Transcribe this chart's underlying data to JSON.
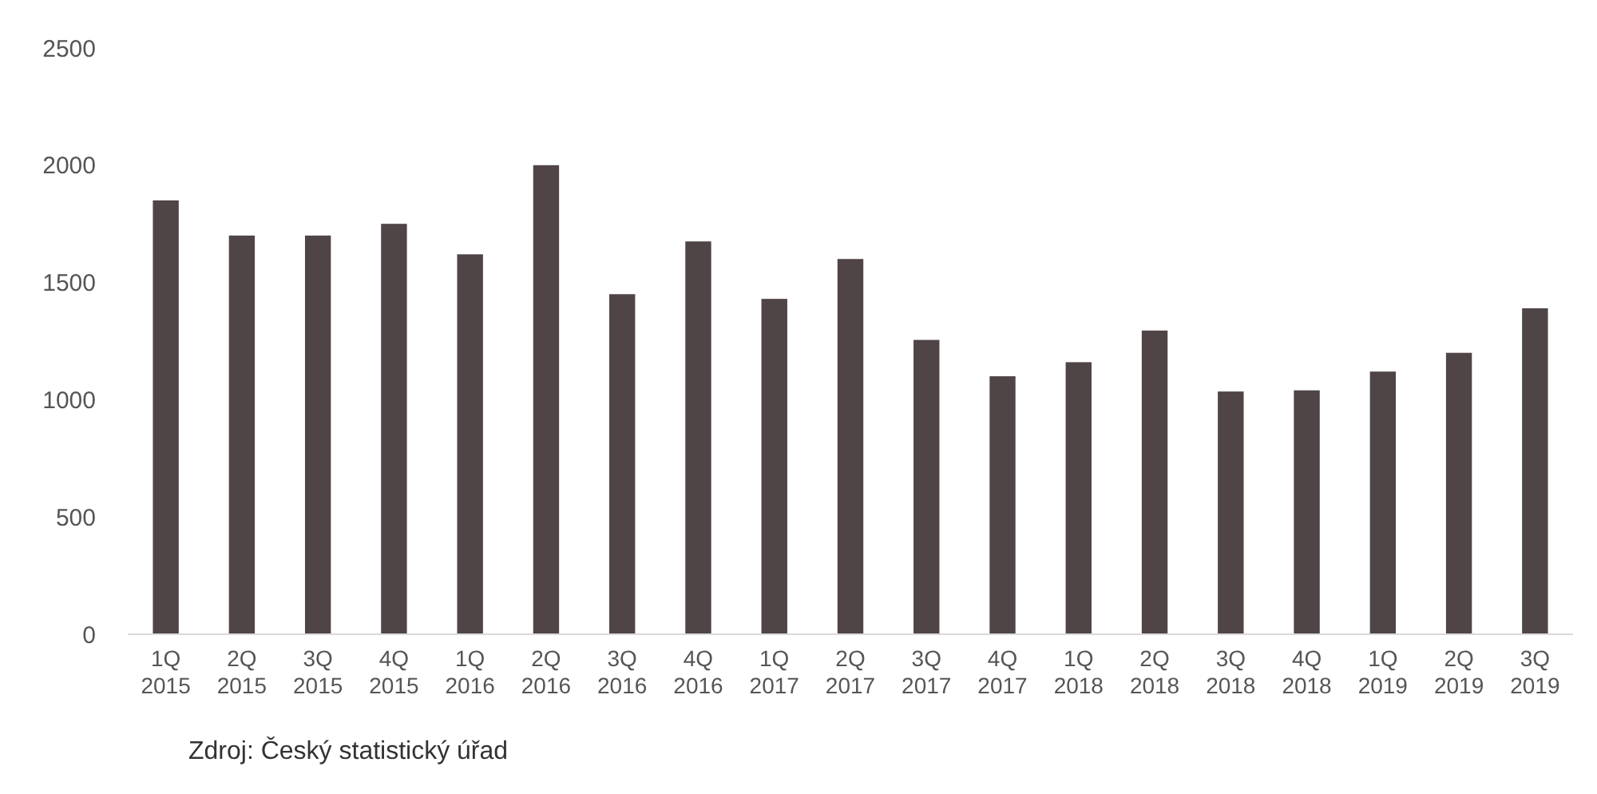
{
  "chart_data": {
    "type": "bar",
    "categories": [
      "1Q 2015",
      "2Q 2015",
      "3Q 2015",
      "4Q 2015",
      "1Q 2016",
      "2Q 2016",
      "3Q 2016",
      "4Q 2016",
      "1Q 2017",
      "2Q 2017",
      "3Q 2017",
      "4Q 2017",
      "1Q 2018",
      "2Q 2018",
      "3Q 2018",
      "4Q 2018",
      "1Q 2019",
      "2Q 2019",
      "3Q 2019"
    ],
    "values": [
      1850,
      1700,
      1700,
      1750,
      1620,
      2000,
      1450,
      1675,
      1430,
      1600,
      1255,
      1100,
      1160,
      1295,
      1035,
      1040,
      1120,
      1200,
      1390
    ],
    "color": "#4f4446",
    "ylim": [
      0,
      2500
    ],
    "yticks": [
      0,
      500,
      1000,
      1500,
      2000,
      2500
    ],
    "grid": false,
    "annotations": [
      "Zdroj: Český statistický úřad"
    ]
  }
}
